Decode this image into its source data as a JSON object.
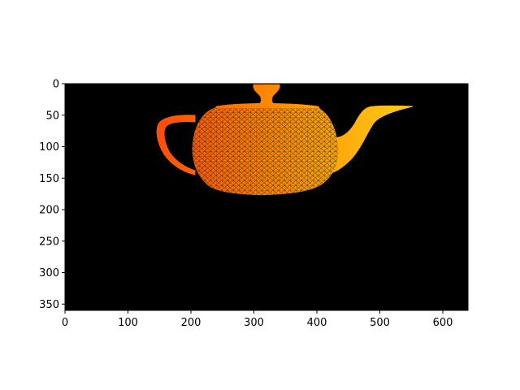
{
  "image": {
    "background": "#000000",
    "colors": {
      "left": "#ff3a10",
      "middle": "#ff8a00",
      "right": "#ffd21a"
    },
    "subject_icon": "teapot-wireframe"
  },
  "axes": {
    "x_ticks": [
      "0",
      "100",
      "200",
      "300",
      "400",
      "500",
      "600"
    ],
    "y_ticks": [
      "0",
      "50",
      "100",
      "150",
      "200",
      "250",
      "300",
      "350"
    ],
    "xlim": [
      0,
      640
    ],
    "ylim": [
      0,
      360
    ]
  }
}
